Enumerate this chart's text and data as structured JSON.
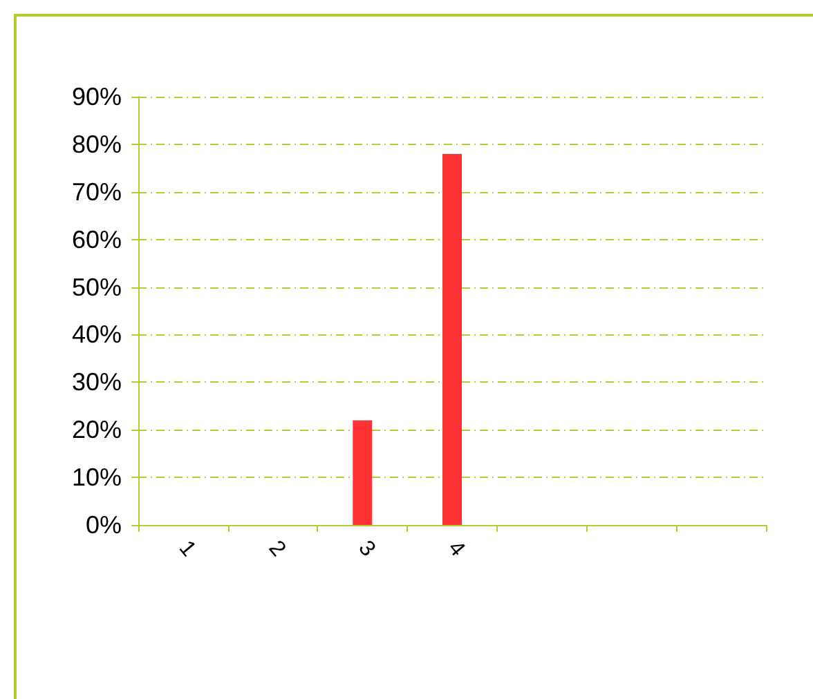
{
  "chart_data": {
    "type": "bar",
    "categories": [
      "1",
      "2",
      "3",
      "4",
      null,
      null,
      null
    ],
    "values": [
      0,
      0,
      22,
      78,
      null,
      null,
      null
    ],
    "color": "#ff3333",
    "ylim": [
      0,
      90
    ],
    "yticks": [
      {
        "value": 0,
        "label": "0%"
      },
      {
        "value": 10,
        "label": "10%"
      },
      {
        "value": 20,
        "label": "20%"
      },
      {
        "value": 30,
        "label": "30%"
      },
      {
        "value": 40,
        "label": "40%"
      },
      {
        "value": 50,
        "label": "50%"
      },
      {
        "value": 60,
        "label": "60%"
      },
      {
        "value": 70,
        "label": "70%"
      },
      {
        "value": 80,
        "label": "80%"
      },
      {
        "value": 90,
        "label": "90%"
      }
    ],
    "grid": "y",
    "line_style": "dashed"
  }
}
